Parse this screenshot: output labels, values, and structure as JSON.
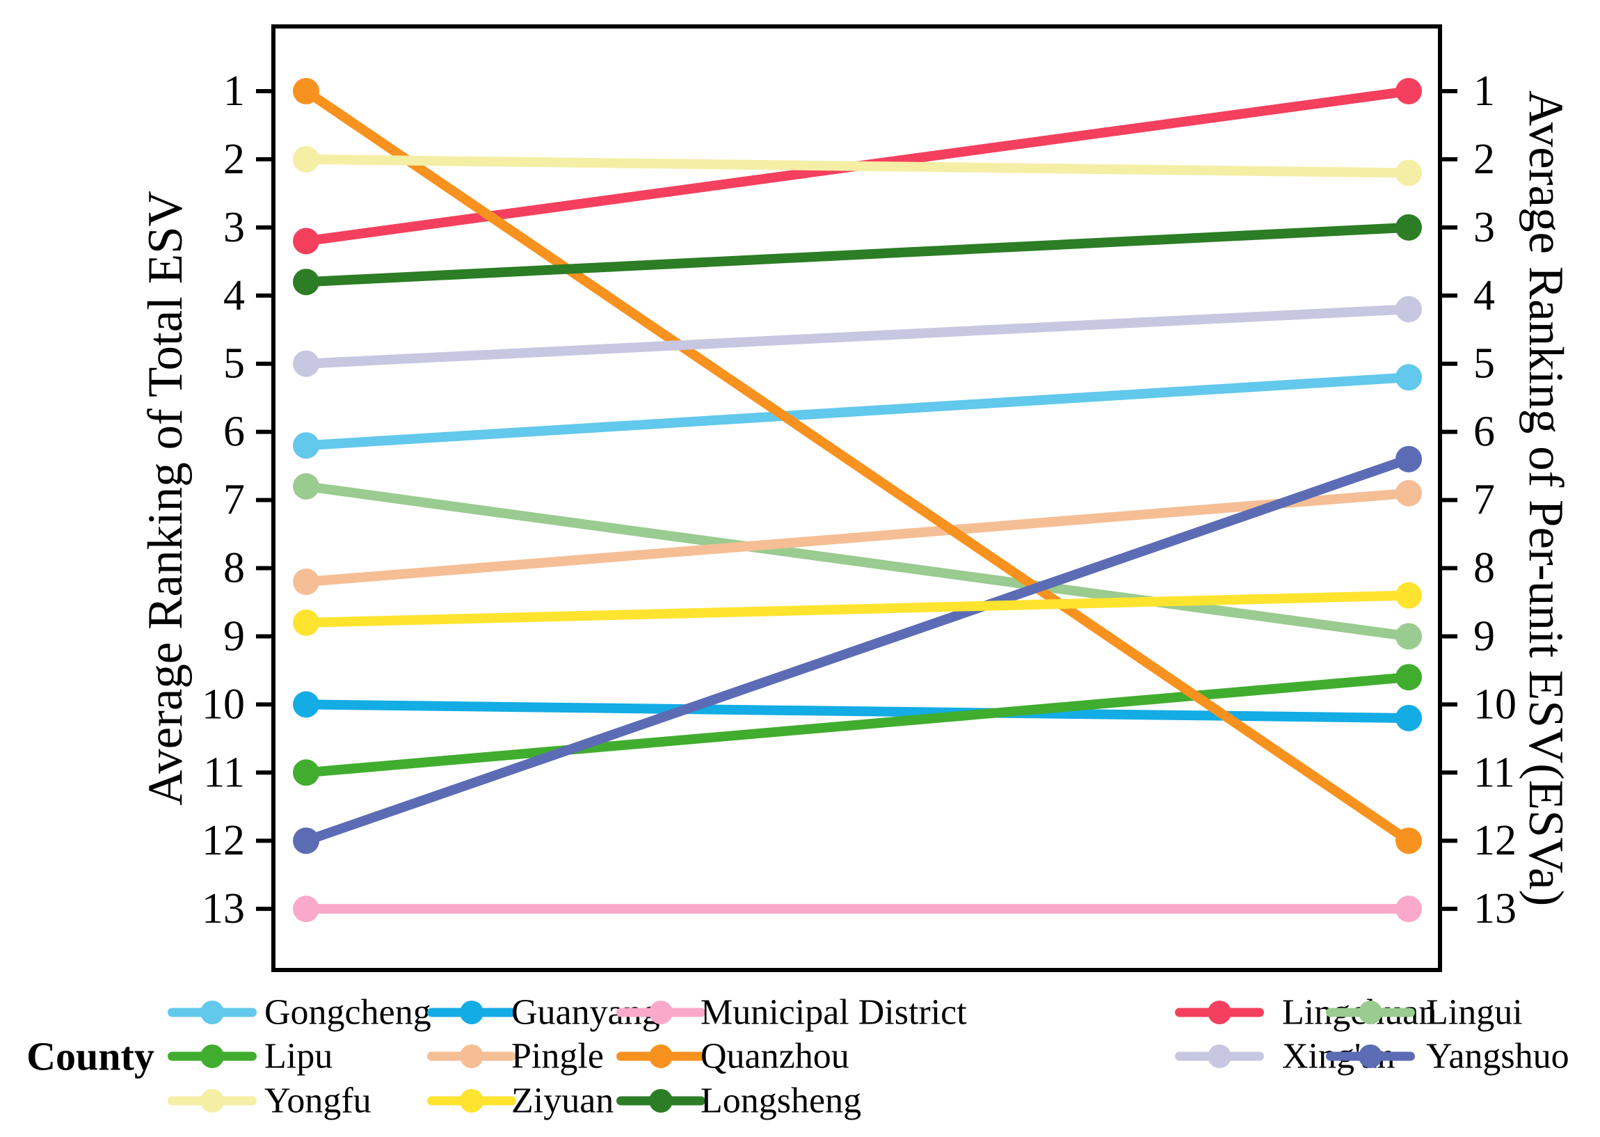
{
  "figure": {
    "left_axis": {
      "title": "Average Ranking of Total ESV",
      "ticks": [
        "1",
        "2",
        "3",
        "4",
        "5",
        "6",
        "7",
        "8",
        "9",
        "10",
        "11",
        "12",
        "13"
      ]
    },
    "right_axis": {
      "title": "Average Ranking of Per-unit ESV(ESVa)",
      "ticks": [
        "1",
        "2",
        "3",
        "4",
        "5",
        "6",
        "7",
        "8",
        "9",
        "10",
        "11",
        "12",
        "13"
      ]
    },
    "legend": {
      "title": "County",
      "rows": [
        [
          "Gongcheng",
          "Guanyang",
          "Municipal District",
          "Lingchuan",
          "Lingui"
        ],
        [
          "Lipu",
          "Pingle",
          "Quanzhou",
          "Xing'an",
          "Yangshuo"
        ],
        [
          "Yongfu",
          "Ziyuan",
          "Longsheng"
        ]
      ]
    }
  },
  "chart_data": {
    "type": "line",
    "subtype": "slope-bump-chart",
    "title": "",
    "xlabel": "",
    "ylabel_left": "Average Ranking of Total ESV",
    "ylabel_right": "Average Ranking of Per-unit ESV(ESVa)",
    "x": [
      "Average Ranking of Total ESV",
      "Average Ranking of Per-unit ESV(ESVa)"
    ],
    "y_axis_inverted_display": "rank 1 at top, rank 13 at bottom",
    "ylim": [
      0.05,
      13.9
    ],
    "yticks": [
      1,
      2,
      3,
      4,
      5,
      6,
      7,
      8,
      9,
      10,
      11,
      12,
      13
    ],
    "grid": "off",
    "legend_position": "below plot, 5 columns x 3 rows, title County",
    "series": [
      {
        "name": "Gongcheng",
        "color": "#62C8EC",
        "values": [
          6.2,
          5.2
        ]
      },
      {
        "name": "Guanyang",
        "color": "#14ACE4",
        "values": [
          10.0,
          10.2
        ]
      },
      {
        "name": "Municipal District",
        "color": "#F9A9C9",
        "values": [
          13.0,
          13.0
        ]
      },
      {
        "name": "Lingchuan",
        "color": "#F4405E",
        "values": [
          3.2,
          1.0
        ]
      },
      {
        "name": "Lingui",
        "color": "#9ACB90",
        "values": [
          6.8,
          9.0
        ]
      },
      {
        "name": "Lipu",
        "color": "#41AD2F",
        "values": [
          11.0,
          9.6
        ]
      },
      {
        "name": "Pingle",
        "color": "#F5BE95",
        "values": [
          8.2,
          6.9
        ]
      },
      {
        "name": "Quanzhou",
        "color": "#F8921F",
        "values": [
          1.0,
          12.0
        ]
      },
      {
        "name": "Xing'an",
        "color": "#C8C7E1",
        "values": [
          5.0,
          4.2
        ]
      },
      {
        "name": "Yangshuo",
        "color": "#5C6CB4",
        "values": [
          12.0,
          6.4
        ]
      },
      {
        "name": "Yongfu",
        "color": "#F5EEA5",
        "values": [
          2.0,
          2.2
        ]
      },
      {
        "name": "Ziyuan",
        "color": "#FFE42F",
        "values": [
          8.8,
          8.4
        ]
      },
      {
        "name": "Longsheng",
        "color": "#2C7D25",
        "values": [
          3.8,
          3.0
        ]
      }
    ]
  }
}
